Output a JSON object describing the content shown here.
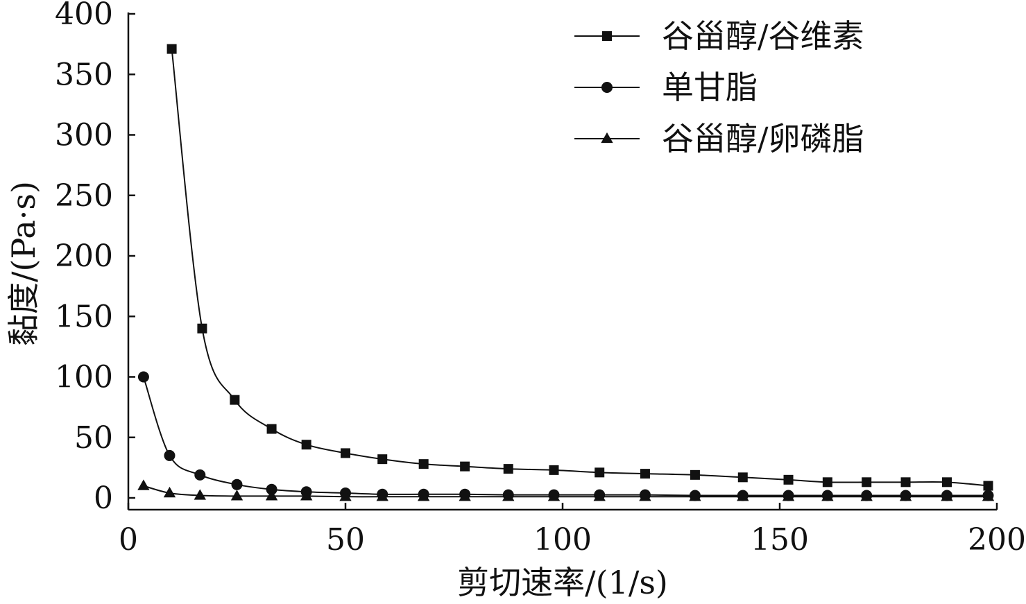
{
  "chart_data": {
    "type": "line",
    "xlabel": "剪切速率/(1/s)",
    "ylabel": "黏度/(Pa·s)",
    "xlim": [
      0,
      200
    ],
    "ylim": [
      0,
      400
    ],
    "x_ticks": [
      "0",
      "50",
      "100",
      "150",
      "200"
    ],
    "y_ticks": [
      "0",
      "50",
      "100",
      "150",
      "200",
      "250",
      "300",
      "350",
      "400"
    ],
    "grid": false,
    "legend_position": "top-right",
    "series": [
      {
        "name": "谷甾醇/谷维素",
        "marker": "square",
        "color": "#111111",
        "x": [
          10,
          17,
          24.5,
          33,
          41,
          50,
          58.5,
          68,
          77.5,
          87.5,
          98,
          108.5,
          119,
          130.5,
          141.5,
          152,
          161,
          170,
          179,
          188.5,
          198
        ],
        "y": [
          371,
          140,
          81,
          57,
          44,
          37,
          32,
          28,
          26,
          24,
          23,
          21,
          20,
          19,
          17,
          15,
          13,
          13,
          13,
          13,
          10
        ]
      },
      {
        "name": "单甘脂",
        "marker": "circle",
        "color": "#111111",
        "x": [
          3.5,
          9.5,
          16.5,
          25,
          33,
          41,
          50,
          58.5,
          68,
          77.5,
          87.5,
          98,
          108.5,
          119,
          130.5,
          141.5,
          152,
          161,
          170,
          179,
          188.5,
          198
        ],
        "y": [
          100,
          35,
          19,
          11,
          7,
          5,
          4,
          3,
          3,
          3,
          2.5,
          2.5,
          2.5,
          2.5,
          2,
          2,
          2,
          2,
          2,
          2,
          2,
          2
        ]
      },
      {
        "name": "谷甾醇/卵磷脂",
        "marker": "triangle",
        "color": "#111111",
        "x": [
          3.5,
          9.5,
          16.5,
          25,
          33,
          41,
          50,
          58.5,
          68,
          77.5,
          87.5,
          98,
          108.5,
          119,
          130.5,
          141.5,
          152,
          161,
          170,
          179,
          188.5,
          198
        ],
        "y": [
          10,
          4,
          2,
          1.5,
          1.5,
          1.5,
          1,
          1,
          1,
          1,
          1,
          1,
          1,
          1,
          1,
          1,
          1,
          1,
          1,
          1,
          1,
          1
        ]
      }
    ]
  }
}
